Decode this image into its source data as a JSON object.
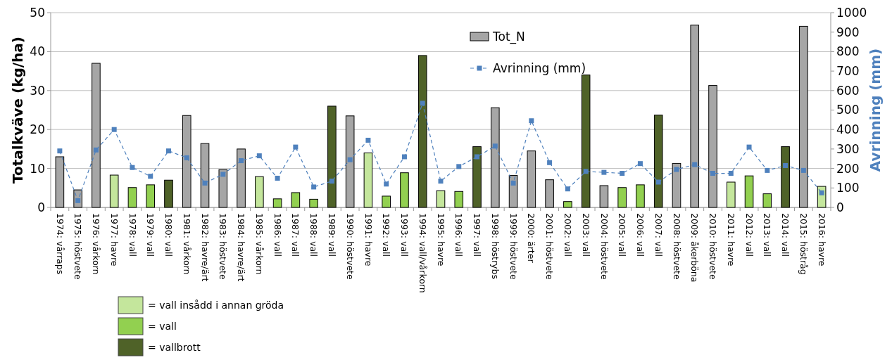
{
  "chart_data": {
    "type": "bar",
    "stacked": true,
    "ylabel": "Totalkväve (kg/ha)",
    "y2label": "Avrinning (mm)",
    "categories": [
      "1974: vårraps",
      "1975: höstvete",
      "1976: vårkorn",
      "1977: havre",
      "1978: vall",
      "1979: vall",
      "1980: vall",
      "1981: vårkorn",
      "1982: havre/ärt",
      "1983: höstvete",
      "1984: havre/ärt",
      "1985: vårkorn",
      "1986: vall",
      "1987: vall",
      "1988: vall",
      "1989: vall",
      "1990: höstvete",
      "1991: havre",
      "1992: vall",
      "1993: vall",
      "1994: vall/vårkorn",
      "1995: havre",
      "1996: vall",
      "1997: vall",
      "1998: höstrybs",
      "1999: höstvete",
      "2000: ärter",
      "2001: höstvete",
      "2002: vall",
      "2003: vall",
      "2004: höstvete",
      "2005: vall",
      "2006: vall",
      "2007: vall",
      "2008: höstvete",
      "2009: åkerböna",
      "2010: höstvete",
      "2011: havre",
      "2012: vall",
      "2013: vall",
      "2014: vall",
      "2015: höstråg",
      "2016: havre"
    ],
    "ylim": [
      0,
      50
    ],
    "yticks": [
      0,
      10,
      20,
      30,
      40,
      50
    ],
    "y2lim": [
      0,
      1000
    ],
    "y2ticks": [
      0,
      100,
      200,
      300,
      400,
      500,
      600,
      700,
      800,
      900,
      1000
    ],
    "grid": "y",
    "legend": "bottom left",
    "series": [
      {
        "name": "Tot_N",
        "color": "#a6a6a6",
        "values": [
          13,
          4.5,
          37,
          null,
          null,
          null,
          null,
          23.6,
          16.4,
          9.7,
          15,
          null,
          null,
          null,
          null,
          null,
          23.5,
          null,
          null,
          null,
          null,
          null,
          null,
          null,
          25.6,
          8.2,
          14.5,
          7.1,
          null,
          null,
          5.6,
          null,
          null,
          null,
          11.3,
          46.8,
          31.3,
          null,
          null,
          null,
          null,
          46.5,
          null
        ]
      },
      {
        "name": "Avrinning (mm)",
        "type": "line",
        "axis": "y2",
        "color": "#4f81bd",
        "marker": "square",
        "line_style": "dashed",
        "values": [
          290,
          35,
          295,
          400,
          205,
          160,
          290,
          255,
          125,
          170,
          240,
          265,
          150,
          310,
          105,
          135,
          245,
          345,
          120,
          260,
          535,
          135,
          210,
          260,
          315,
          125,
          445,
          230,
          95,
          185,
          180,
          175,
          225,
          130,
          195,
          220,
          175,
          175,
          310,
          190,
          215,
          190,
          75
        ]
      },
      {
        "name": "= vall insådd i annan gröda",
        "color": "#c4e69c",
        "values": [
          null,
          null,
          null,
          8.3,
          null,
          null,
          null,
          null,
          null,
          null,
          null,
          7.9,
          null,
          null,
          null,
          null,
          null,
          14,
          null,
          null,
          null,
          4.3,
          null,
          null,
          null,
          null,
          null,
          null,
          null,
          null,
          null,
          null,
          null,
          null,
          null,
          null,
          null,
          6.5,
          null,
          null,
          null,
          null,
          5.4
        ]
      },
      {
        "name": "= vall",
        "color": "#92d050",
        "values": [
          null,
          null,
          null,
          null,
          5.1,
          5.8,
          null,
          null,
          null,
          null,
          null,
          null,
          2.2,
          3.8,
          2.1,
          null,
          null,
          null,
          2.9,
          8.9,
          null,
          null,
          4.1,
          null,
          null,
          null,
          null,
          null,
          1.5,
          null,
          null,
          5.1,
          5.8,
          null,
          null,
          null,
          null,
          null,
          8.1,
          3.5,
          null,
          null,
          null
        ]
      },
      {
        "name": "= vallbrott",
        "color": "#4f6228",
        "values": [
          null,
          null,
          null,
          null,
          null,
          null,
          7,
          null,
          null,
          null,
          null,
          null,
          null,
          null,
          null,
          26,
          null,
          null,
          null,
          null,
          39,
          null,
          null,
          15.6,
          null,
          null,
          null,
          null,
          null,
          34,
          null,
          null,
          null,
          23.7,
          null,
          null,
          null,
          null,
          null,
          null,
          15.6,
          null,
          null
        ]
      }
    ]
  }
}
